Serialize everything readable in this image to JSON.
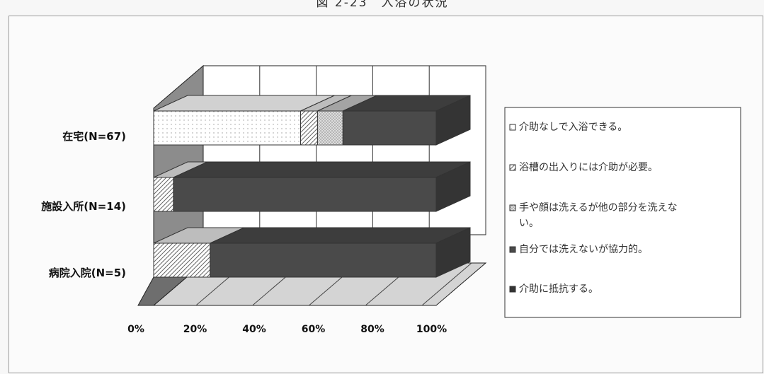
{
  "chart_data": {
    "type": "bar",
    "orientation": "horizontal",
    "stacked": "percent",
    "title": "",
    "categories": [
      "在宅(N=67)",
      "施設入所(N=14)",
      "病院入院(N=5)"
    ],
    "series": [
      {
        "name": "介助なしで入浴できる。",
        "values": [
          52,
          0,
          0
        ],
        "color": "#ffffff",
        "pattern": "sparse-dots"
      },
      {
        "name": "浴槽の出入りには介助が必要。",
        "values": [
          6,
          7,
          20
        ],
        "color": "#e6e6e6",
        "pattern": "diagonal-hatch"
      },
      {
        "name": "手や顔は洗えるが他の部分を洗えない。",
        "values": [
          9,
          0,
          0
        ],
        "color": "#c8c8c8",
        "pattern": "dense-dots"
      },
      {
        "name": "自分では洗えないが協力的。",
        "values": [
          33,
          93,
          80
        ],
        "color": "#4a4a4a",
        "pattern": "solid"
      },
      {
        "name": "介助に抵抗する。",
        "values": [
          0,
          0,
          0
        ],
        "color": "#333333",
        "pattern": "solid"
      }
    ],
    "x_ticks": [
      "0%",
      "20%",
      "40%",
      "60%",
      "80%",
      "100%"
    ],
    "xlim": [
      0,
      100
    ],
    "grid": true,
    "legend_position": "right",
    "three_d": true
  }
}
